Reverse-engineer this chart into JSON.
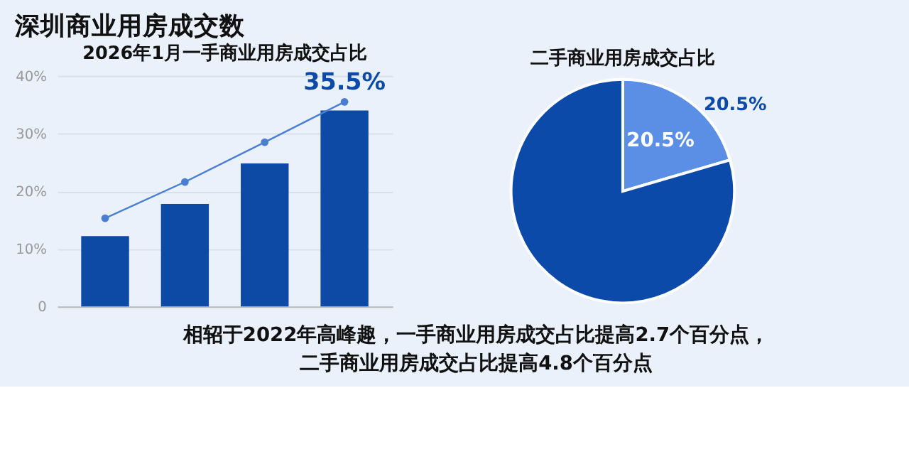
{
  "chart_data": [
    {
      "type": "bar",
      "title": "深圳商业用房成交数",
      "subtitle": "2026年1月一手商业用房成交占比",
      "categories": [
        null,
        null,
        null,
        null
      ],
      "series": [
        {
          "type": "bar",
          "color": "#0d4aa6",
          "values": [
            12.2,
            17.8,
            24.8,
            34.0
          ]
        },
        {
          "type": "line",
          "color": "#4a7fd0",
          "values": [
            15.3,
            21.6,
            28.5,
            35.5
          ],
          "value_labels": [
            null,
            null,
            null,
            "35.5%"
          ]
        }
      ],
      "ylim": [
        0,
        40
      ],
      "yticks": [
        0,
        {
          "value": 10,
          "label": "10%"
        },
        {
          "value": 20,
          "label": "20%"
        },
        {
          "value": 30,
          "label": "30%"
        },
        {
          "value": 40,
          "label": "40%"
        }
      ],
      "grid": "y",
      "tick_labels": "y",
      "marker": "circle",
      "annotations": [
        "相轺于2022年高峰趣，一手商业用房成交占比提高2.7个百分点，",
        "二手商业用房成交占比提高4.8个百分点"
      ]
    },
    {
      "type": "pie",
      "title": "二手商业用房成交占比",
      "categories": [
        null,
        null
      ],
      "values": [
        20.5,
        79.5
      ],
      "colors": [
        "#5b8fe6",
        "#0b4aa8"
      ],
      "value_labels": [
        "20.5%",
        null
      ],
      "annotations": [
        "20.5%"
      ]
    }
  ]
}
